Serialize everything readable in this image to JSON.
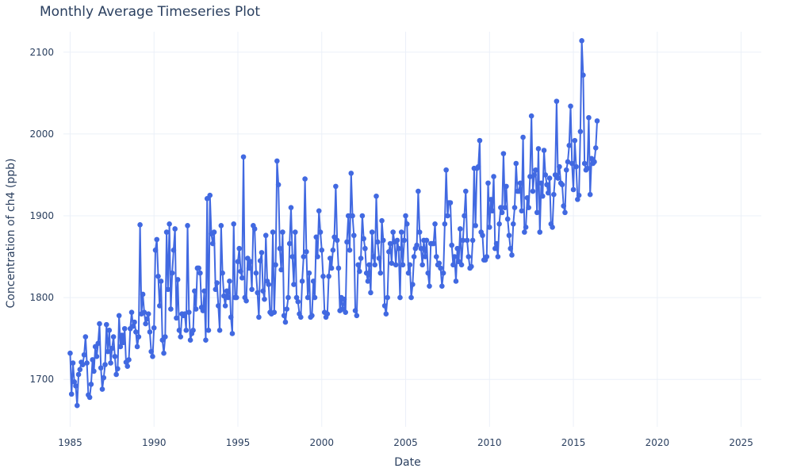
{
  "chart_data": {
    "type": "line",
    "title": "Monthly Average Timeseries Plot",
    "xlabel": "Date",
    "ylabel": "Concentration of ch4 (ppb)",
    "xlim": [
      1984.6,
      2026.2
    ],
    "ylim": [
      1642,
      2125
    ],
    "xticks": [
      1985,
      1990,
      1995,
      2000,
      2005,
      2010,
      2015,
      2020,
      2025
    ],
    "yticks": [
      1700,
      1800,
      1900,
      2000,
      2100
    ],
    "grid": true,
    "legend": "none",
    "mode": "lines+markers",
    "color": "#4169e1",
    "x_start": 1985.0,
    "x_step": 0.08333,
    "values": [
      1732,
      1682,
      1720,
      1697,
      1692,
      1668,
      1706,
      1712,
      1721,
      1718,
      1730,
      1752,
      1720,
      1681,
      1678,
      1694,
      1724,
      1710,
      1740,
      1728,
      1744,
      1768,
      1714,
      1688,
      1702,
      1718,
      1767,
      1734,
      1760,
      1720,
      1738,
      1752,
      1728,
      1706,
      1713,
      1778,
      1740,
      1754,
      1745,
      1762,
      1721,
      1716,
      1724,
      1762,
      1782,
      1765,
      1770,
      1758,
      1740,
      1752,
      1889,
      1780,
      1804,
      1782,
      1768,
      1774,
      1780,
      1758,
      1734,
      1728,
      1763,
      1858,
      1871,
      1826,
      1790,
      1820,
      1748,
      1732,
      1752,
      1880,
      1810,
      1890,
      1786,
      1830,
      1858,
      1884,
      1775,
      1822,
      1760,
      1752,
      1780,
      1778,
      1780,
      1760,
      1888,
      1782,
      1748,
      1756,
      1760,
      1808,
      1786,
      1836,
      1836,
      1830,
      1788,
      1784,
      1808,
      1748,
      1921,
      1760,
      1925,
      1878,
      1866,
      1880,
      1810,
      1818,
      1790,
      1760,
      1888,
      1830,
      1802,
      1790,
      1808,
      1800,
      1820,
      1776,
      1756,
      1890,
      1800,
      1800,
      1844,
      1860,
      1832,
      1824,
      1972,
      1800,
      1796,
      1848,
      1836,
      1844,
      1810,
      1888,
      1884,
      1830,
      1806,
      1776,
      1845,
      1855,
      1808,
      1798,
      1876,
      1820,
      1816,
      1782,
      1780,
      1880,
      1782,
      1840,
      1967,
      1938,
      1860,
      1834,
      1880,
      1778,
      1770,
      1786,
      1800,
      1866,
      1910,
      1850,
      1816,
      1880,
      1800,
      1795,
      1780,
      1776,
      1820,
      1850,
      1945,
      1856,
      1800,
      1830,
      1776,
      1778,
      1820,
      1800,
      1874,
      1850,
      1906,
      1880,
      1858,
      1826,
      1782,
      1776,
      1780,
      1826,
      1848,
      1836,
      1858,
      1874,
      1936,
      1870,
      1836,
      1784,
      1800,
      1786,
      1798,
      1782,
      1868,
      1900,
      1858,
      1952,
      1900,
      1876,
      1784,
      1778,
      1840,
      1832,
      1848,
      1900,
      1872,
      1860,
      1830,
      1820,
      1840,
      1806,
      1880,
      1850,
      1840,
      1924,
      1868,
      1848,
      1830,
      1894,
      1870,
      1790,
      1780,
      1800,
      1856,
      1866,
      1842,
      1880,
      1868,
      1840,
      1870,
      1860,
      1800,
      1880,
      1840,
      1870,
      1900,
      1890,
      1830,
      1840,
      1800,
      1816,
      1850,
      1860,
      1864,
      1930,
      1880,
      1860,
      1840,
      1870,
      1850,
      1870,
      1830,
      1814,
      1866,
      1866,
      1866,
      1890,
      1850,
      1840,
      1842,
      1836,
      1814,
      1830,
      1890,
      1956,
      1900,
      1916,
      1916,
      1864,
      1840,
      1850,
      1820,
      1860,
      1844,
      1884,
      1840,
      1870,
      1900,
      1930,
      1870,
      1850,
      1836,
      1838,
      1870,
      1958,
      1888,
      1958,
      1960,
      1992,
      1880,
      1876,
      1846,
      1846,
      1850,
      1940,
      1886,
      1920,
      1906,
      1948,
      1860,
      1866,
      1850,
      1890,
      1910,
      1904,
      1976,
      1910,
      1936,
      1896,
      1876,
      1860,
      1852,
      1890,
      1910,
      1964,
      1930,
      1930,
      1940,
      1906,
      1996,
      1880,
      1886,
      1922,
      1910,
      1948,
      2022,
      1930,
      1950,
      1956,
      1904,
      1982,
      1880,
      1940,
      1924,
      1980,
      1950,
      1938,
      1928,
      1946,
      1890,
      1886,
      1926,
      1950,
      2040,
      1946,
      1960,
      1940,
      1938,
      1912,
      1904,
      1956,
      1966,
      1986,
      2034,
      1964,
      1932,
      1992,
      1960,
      1920,
      1925,
      2003,
      2114,
      2072,
      1964,
      1956,
      1958,
      2020,
      1926,
      1970,
      1964,
      1966,
      1983,
      2016
    ]
  }
}
